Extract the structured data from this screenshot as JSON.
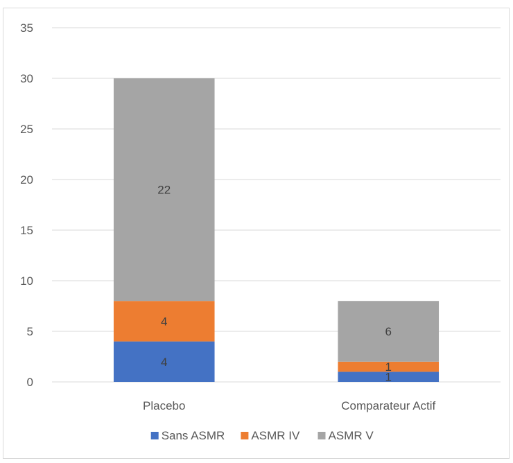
{
  "chart_data": {
    "type": "bar",
    "stacked": true,
    "categories": [
      "Placebo",
      "Comparateur Actif"
    ],
    "series": [
      {
        "name": "Sans ASMR",
        "values": [
          4,
          1
        ],
        "color": "#4472c4"
      },
      {
        "name": "ASMR IV",
        "values": [
          4,
          1
        ],
        "color": "#ed7d31"
      },
      {
        "name": "ASMR V",
        "values": [
          22,
          6
        ],
        "color": "#a5a5a5"
      }
    ],
    "y_ticks": [
      "0",
      "5",
      "10",
      "15",
      "20",
      "25",
      "30",
      "35"
    ],
    "ylim": [
      0,
      35
    ],
    "grid": true,
    "legend_position": "bottom",
    "title": "",
    "xlabel": "",
    "ylabel": ""
  }
}
